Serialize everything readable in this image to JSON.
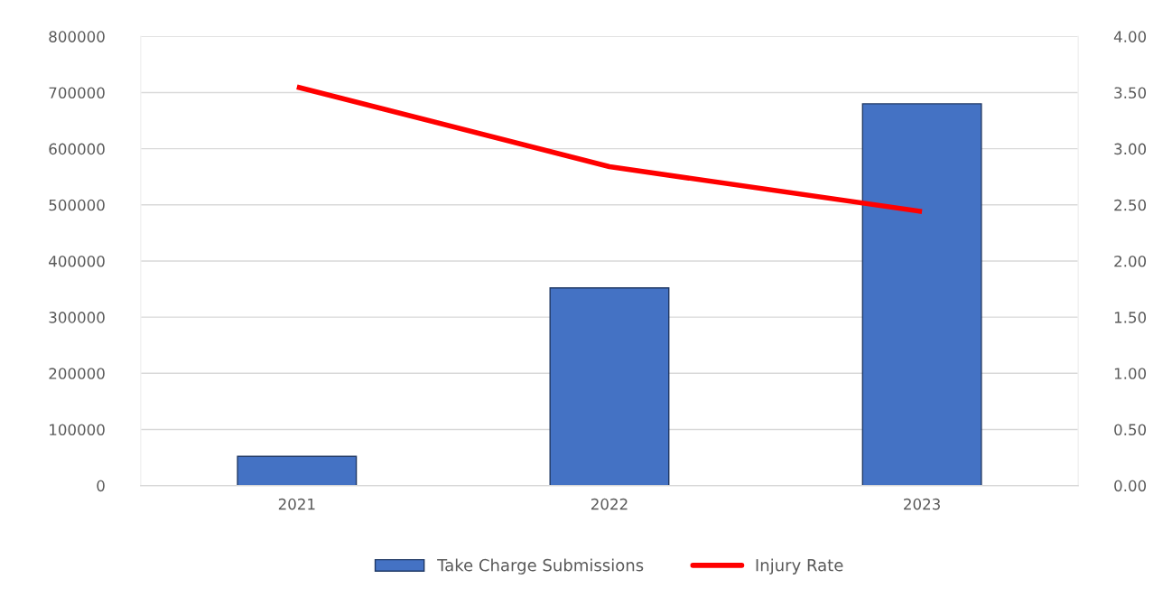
{
  "chart_data": {
    "type": "bar",
    "categories": [
      "2021",
      "2022",
      "2023"
    ],
    "series": [
      {
        "name": "Take Charge Submissions",
        "color": "#4472c4",
        "values": [
          52000,
          352000,
          680000
        ]
      },
      {
        "name": "Injury Rate",
        "type": "line",
        "axis": "y2",
        "color": "#ff0000",
        "values": [
          3.55,
          2.84,
          2.44
        ]
      }
    ],
    "ylim": [
      0,
      800000
    ],
    "yticks": [
      0,
      100000,
      200000,
      300000,
      400000,
      500000,
      600000,
      700000,
      800000
    ],
    "y2lim": [
      0,
      4
    ],
    "y2ticks": [
      {
        "value": 0,
        "label": "0.00"
      },
      {
        "value": 0.5,
        "label": "0.50"
      },
      {
        "value": 1,
        "label": "1.00"
      },
      {
        "value": 1.5,
        "label": "1.50"
      },
      {
        "value": 2,
        "label": "2.00"
      },
      {
        "value": 2.5,
        "label": "2.50"
      },
      {
        "value": 3,
        "label": "3.00"
      },
      {
        "value": 3.5,
        "label": "3.50"
      },
      {
        "value": 4,
        "label": "4.00"
      }
    ],
    "grid": "y",
    "legend": "bottom",
    "marker": "none",
    "line_style": "solid"
  }
}
